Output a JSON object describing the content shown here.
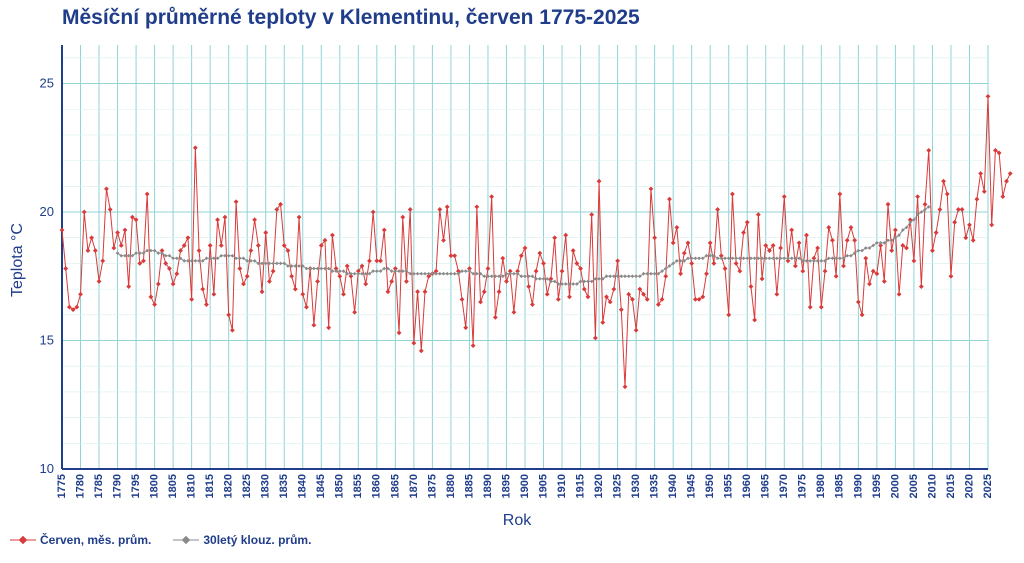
{
  "chart_data": {
    "type": "line",
    "title": "Měsíční průměrné teploty v Klementinu, červen 1775-2025",
    "xlabel": "Rok",
    "ylabel": "Teplota  °C",
    "xlim": [
      1775,
      2025
    ],
    "ylim": [
      10,
      26.5
    ],
    "yticks": [
      10,
      15,
      20,
      25
    ],
    "xticks": [
      1775,
      1780,
      1785,
      1790,
      1795,
      1800,
      1805,
      1810,
      1815,
      1820,
      1825,
      1830,
      1835,
      1840,
      1845,
      1850,
      1855,
      1860,
      1865,
      1870,
      1875,
      1880,
      1885,
      1890,
      1895,
      1900,
      1905,
      1910,
      1915,
      1920,
      1925,
      1930,
      1935,
      1940,
      1945,
      1950,
      1955,
      1960,
      1965,
      1970,
      1975,
      1980,
      1985,
      1990,
      1995,
      2000,
      2005,
      2010,
      2015,
      2020,
      2025
    ],
    "grid": true,
    "legend_position": "bottom-left",
    "colors": {
      "monthly": "#d93a3a",
      "moving_avg": "#8a8a8a",
      "grid": "#8fd3d3",
      "axis": "#1f3d8a",
      "text": "#1f3d8a"
    },
    "series": [
      {
        "name": "Červen, měs. prům.",
        "x_start": 1775,
        "values": [
          19.3,
          17.8,
          16.3,
          16.2,
          16.3,
          16.8,
          20.0,
          18.5,
          19.0,
          18.5,
          17.3,
          18.1,
          20.9,
          20.1,
          18.6,
          19.2,
          18.7,
          19.3,
          17.1,
          19.8,
          19.7,
          18.0,
          18.1,
          20.7,
          16.7,
          16.4,
          17.2,
          18.5,
          18.0,
          17.8,
          17.2,
          17.6,
          18.5,
          18.7,
          19.0,
          16.6,
          22.5,
          18.5,
          17.0,
          16.4,
          18.7,
          16.8,
          19.7,
          18.7,
          19.8,
          16.0,
          15.4,
          20.4,
          17.8,
          17.2,
          17.5,
          18.5,
          19.7,
          18.7,
          16.9,
          19.2,
          17.3,
          17.7,
          20.1,
          20.3,
          18.7,
          18.5,
          17.5,
          17.0,
          19.8,
          16.8,
          16.3,
          17.8,
          15.6,
          17.3,
          18.7,
          18.9,
          15.5,
          19.1,
          17.8,
          17.5,
          16.8,
          17.9,
          17.5,
          16.1,
          17.7,
          17.9,
          17.2,
          18.1,
          20.0,
          18.1,
          18.1,
          19.3,
          16.9,
          17.3,
          17.8,
          15.3,
          19.8,
          17.3,
          20.1,
          14.9,
          16.9,
          14.6,
          16.9,
          17.5,
          17.6,
          17.7,
          20.1,
          18.9,
          20.2,
          18.3,
          18.3,
          17.7,
          16.6,
          15.5,
          17.8,
          14.8,
          20.2,
          16.5,
          16.9,
          17.8,
          20.6,
          15.9,
          16.9,
          18.2,
          17.3,
          17.7,
          16.1,
          17.7,
          18.3,
          18.6,
          17.1,
          16.4,
          17.7,
          18.4,
          18.0,
          16.8,
          17.4,
          19.0,
          16.6,
          17.7,
          19.1,
          16.7,
          18.5,
          18.0,
          17.8,
          17.0,
          16.7,
          19.9,
          15.1,
          21.2,
          15.7,
          16.7,
          16.5,
          17.0,
          18.1,
          16.2,
          13.2,
          16.8,
          16.6,
          15.4,
          17.0,
          16.8,
          16.6,
          20.9,
          19.0,
          16.4,
          16.6,
          17.5,
          20.5,
          18.8,
          19.4,
          17.6,
          18.4,
          18.8,
          18.0,
          16.6,
          16.6,
          16.7,
          17.6,
          18.8,
          18.0,
          20.1,
          18.3,
          17.8,
          16.0,
          20.7,
          18.0,
          17.7,
          19.2,
          19.6,
          17.1,
          15.8,
          19.9,
          17.4,
          18.7,
          18.5,
          18.7,
          16.8,
          18.6,
          20.6,
          18.1,
          19.3,
          17.9,
          18.8,
          17.7,
          19.1,
          16.3,
          18.2,
          18.6,
          16.3,
          17.7,
          19.4,
          18.9,
          17.5,
          20.7,
          17.9,
          18.9,
          19.4,
          18.9,
          16.5,
          16.0,
          18.2,
          17.2,
          17.7,
          17.6,
          18.7,
          17.3,
          20.3,
          18.5,
          19.3,
          16.8,
          18.7,
          18.6,
          19.7,
          18.1,
          20.6,
          17.1,
          20.3,
          22.4,
          18.5,
          19.2,
          20.1,
          21.2,
          20.7,
          17.5,
          19.6,
          20.1,
          20.1,
          19.0,
          19.5,
          18.9,
          20.5,
          21.5,
          20.8,
          24.5,
          19.5,
          22.4,
          22.3,
          20.6,
          21.2,
          21.5
        ]
      },
      {
        "name": "30letý klouz. prům.",
        "x_start": 1790,
        "values": [
          18.4,
          18.3,
          18.3,
          18.3,
          18.3,
          18.4,
          18.4,
          18.4,
          18.5,
          18.5,
          18.5,
          18.4,
          18.4,
          18.3,
          18.3,
          18.2,
          18.2,
          18.2,
          18.1,
          18.1,
          18.1,
          18.1,
          18.1,
          18.1,
          18.2,
          18.2,
          18.2,
          18.2,
          18.3,
          18.3,
          18.3,
          18.3,
          18.2,
          18.2,
          18.2,
          18.1,
          18.1,
          18.1,
          18.0,
          18.0,
          18.0,
          18.0,
          18.0,
          18.0,
          18.0,
          18.0,
          17.9,
          17.9,
          17.9,
          17.9,
          17.9,
          17.8,
          17.8,
          17.8,
          17.8,
          17.8,
          17.8,
          17.8,
          17.7,
          17.7,
          17.7,
          17.7,
          17.6,
          17.6,
          17.6,
          17.6,
          17.6,
          17.6,
          17.6,
          17.7,
          17.7,
          17.7,
          17.8,
          17.8,
          17.7,
          17.7,
          17.7,
          17.7,
          17.7,
          17.6,
          17.6,
          17.6,
          17.6,
          17.6,
          17.6,
          17.6,
          17.6,
          17.6,
          17.6,
          17.6,
          17.6,
          17.6,
          17.6,
          17.7,
          17.7,
          17.7,
          17.6,
          17.6,
          17.6,
          17.5,
          17.5,
          17.5,
          17.5,
          17.5,
          17.5,
          17.6,
          17.6,
          17.6,
          17.6,
          17.5,
          17.5,
          17.5,
          17.5,
          17.4,
          17.4,
          17.4,
          17.4,
          17.3,
          17.3,
          17.2,
          17.2,
          17.2,
          17.2,
          17.2,
          17.2,
          17.3,
          17.3,
          17.3,
          17.3,
          17.4,
          17.4,
          17.4,
          17.5,
          17.5,
          17.5,
          17.5,
          17.5,
          17.5,
          17.5,
          17.5,
          17.5,
          17.5,
          17.6,
          17.6,
          17.6,
          17.6,
          17.6,
          17.7,
          17.8,
          17.9,
          18.0,
          18.1,
          18.1,
          18.1,
          18.2,
          18.2,
          18.2,
          18.2,
          18.2,
          18.3,
          18.3,
          18.3,
          18.2,
          18.2,
          18.2,
          18.2,
          18.2,
          18.2,
          18.2,
          18.2,
          18.2,
          18.2,
          18.2,
          18.2,
          18.2,
          18.2,
          18.2,
          18.2,
          18.2,
          18.2,
          18.2,
          18.2,
          18.2,
          18.2,
          18.2,
          18.1,
          18.1,
          18.1,
          18.1,
          18.1,
          18.1,
          18.1,
          18.2,
          18.2,
          18.2,
          18.2,
          18.2,
          18.3,
          18.3,
          18.4,
          18.5,
          18.5,
          18.6,
          18.6,
          18.7,
          18.8,
          18.8,
          18.8,
          18.9,
          18.9,
          19.0,
          19.1,
          19.3,
          19.4,
          19.6,
          19.7,
          19.9,
          20.0,
          20.1,
          20.2
        ]
      }
    ]
  }
}
